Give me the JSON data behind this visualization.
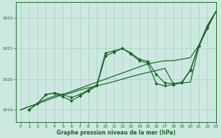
{
  "title": "Graphe pression niveau de la mer (hPa)",
  "background_color": "#cce8e0",
  "grid_color": "#aaccc4",
  "line_color": "#1a6628",
  "xlim": [
    -0.5,
    23
  ],
  "ylim": [
    1018.6,
    1022.5
  ],
  "yticks": [
    1019,
    1020,
    1021,
    1022
  ],
  "xticks": [
    0,
    1,
    2,
    3,
    4,
    5,
    6,
    7,
    8,
    9,
    10,
    11,
    12,
    13,
    14,
    15,
    16,
    17,
    18,
    19,
    20,
    21,
    22,
    23
  ],
  "lines": [
    {
      "x": [
        0,
        1,
        2,
        3,
        4,
        5,
        6,
        7,
        8,
        9,
        10,
        11,
        12,
        13,
        14,
        15,
        16,
        17,
        18,
        19,
        20,
        21,
        22,
        23
      ],
      "y": [
        1019.0,
        1019.1,
        1019.2,
        1019.3,
        1019.4,
        1019.5,
        1019.6,
        1019.7,
        1019.8,
        1019.9,
        1020.0,
        1020.1,
        1020.2,
        1020.3,
        1020.4,
        1020.5,
        1020.55,
        1020.6,
        1020.6,
        1020.65,
        1020.7,
        1021.1,
        1021.75,
        1022.2
      ],
      "marker": null,
      "lw": 0.9
    },
    {
      "x": [
        0,
        1,
        2,
        3,
        4,
        5,
        6,
        7,
        8,
        9,
        10,
        11,
        12,
        13,
        14,
        15,
        16,
        17,
        18,
        19,
        20,
        21,
        22,
        23
      ],
      "y": [
        1019.0,
        1019.1,
        1019.2,
        1019.35,
        1019.45,
        1019.5,
        1019.55,
        1019.65,
        1019.72,
        1019.78,
        1019.85,
        1019.92,
        1020.0,
        1020.08,
        1020.15,
        1020.22,
        1020.28,
        1020.35,
        1019.85,
        1019.88,
        1019.9,
        1021.05,
        1021.7,
        1022.2
      ],
      "marker": null,
      "lw": 0.9
    },
    {
      "x": [
        1,
        2,
        3,
        4,
        5,
        6,
        7,
        8,
        9,
        10,
        11,
        12,
        13,
        14,
        15,
        16,
        17,
        18,
        19,
        20,
        21,
        22,
        23
      ],
      "y": [
        1019.0,
        1019.2,
        1019.5,
        1019.55,
        1019.5,
        1019.4,
        1019.5,
        1019.65,
        1019.82,
        1020.85,
        1020.92,
        1021.0,
        1020.85,
        1020.65,
        1020.58,
        1020.15,
        1019.88,
        1019.85,
        1019.9,
        1020.3,
        1021.1,
        1021.7,
        1022.2
      ],
      "marker": "D",
      "lw": 0.9
    },
    {
      "x": [
        1,
        2,
        3,
        4,
        5,
        6,
        7,
        8,
        9,
        10,
        11,
        12,
        13,
        14,
        15,
        16,
        17,
        18,
        19,
        20,
        21,
        22,
        23
      ],
      "y": [
        1019.0,
        1019.2,
        1019.5,
        1019.55,
        1019.42,
        1019.3,
        1019.45,
        1019.62,
        1019.78,
        1020.75,
        1020.88,
        1021.0,
        1020.82,
        1020.6,
        1020.52,
        1019.85,
        1019.78,
        1019.82,
        1019.88,
        1020.28,
        1021.08,
        1021.65,
        1022.2
      ],
      "marker": "D",
      "lw": 0.9
    }
  ]
}
